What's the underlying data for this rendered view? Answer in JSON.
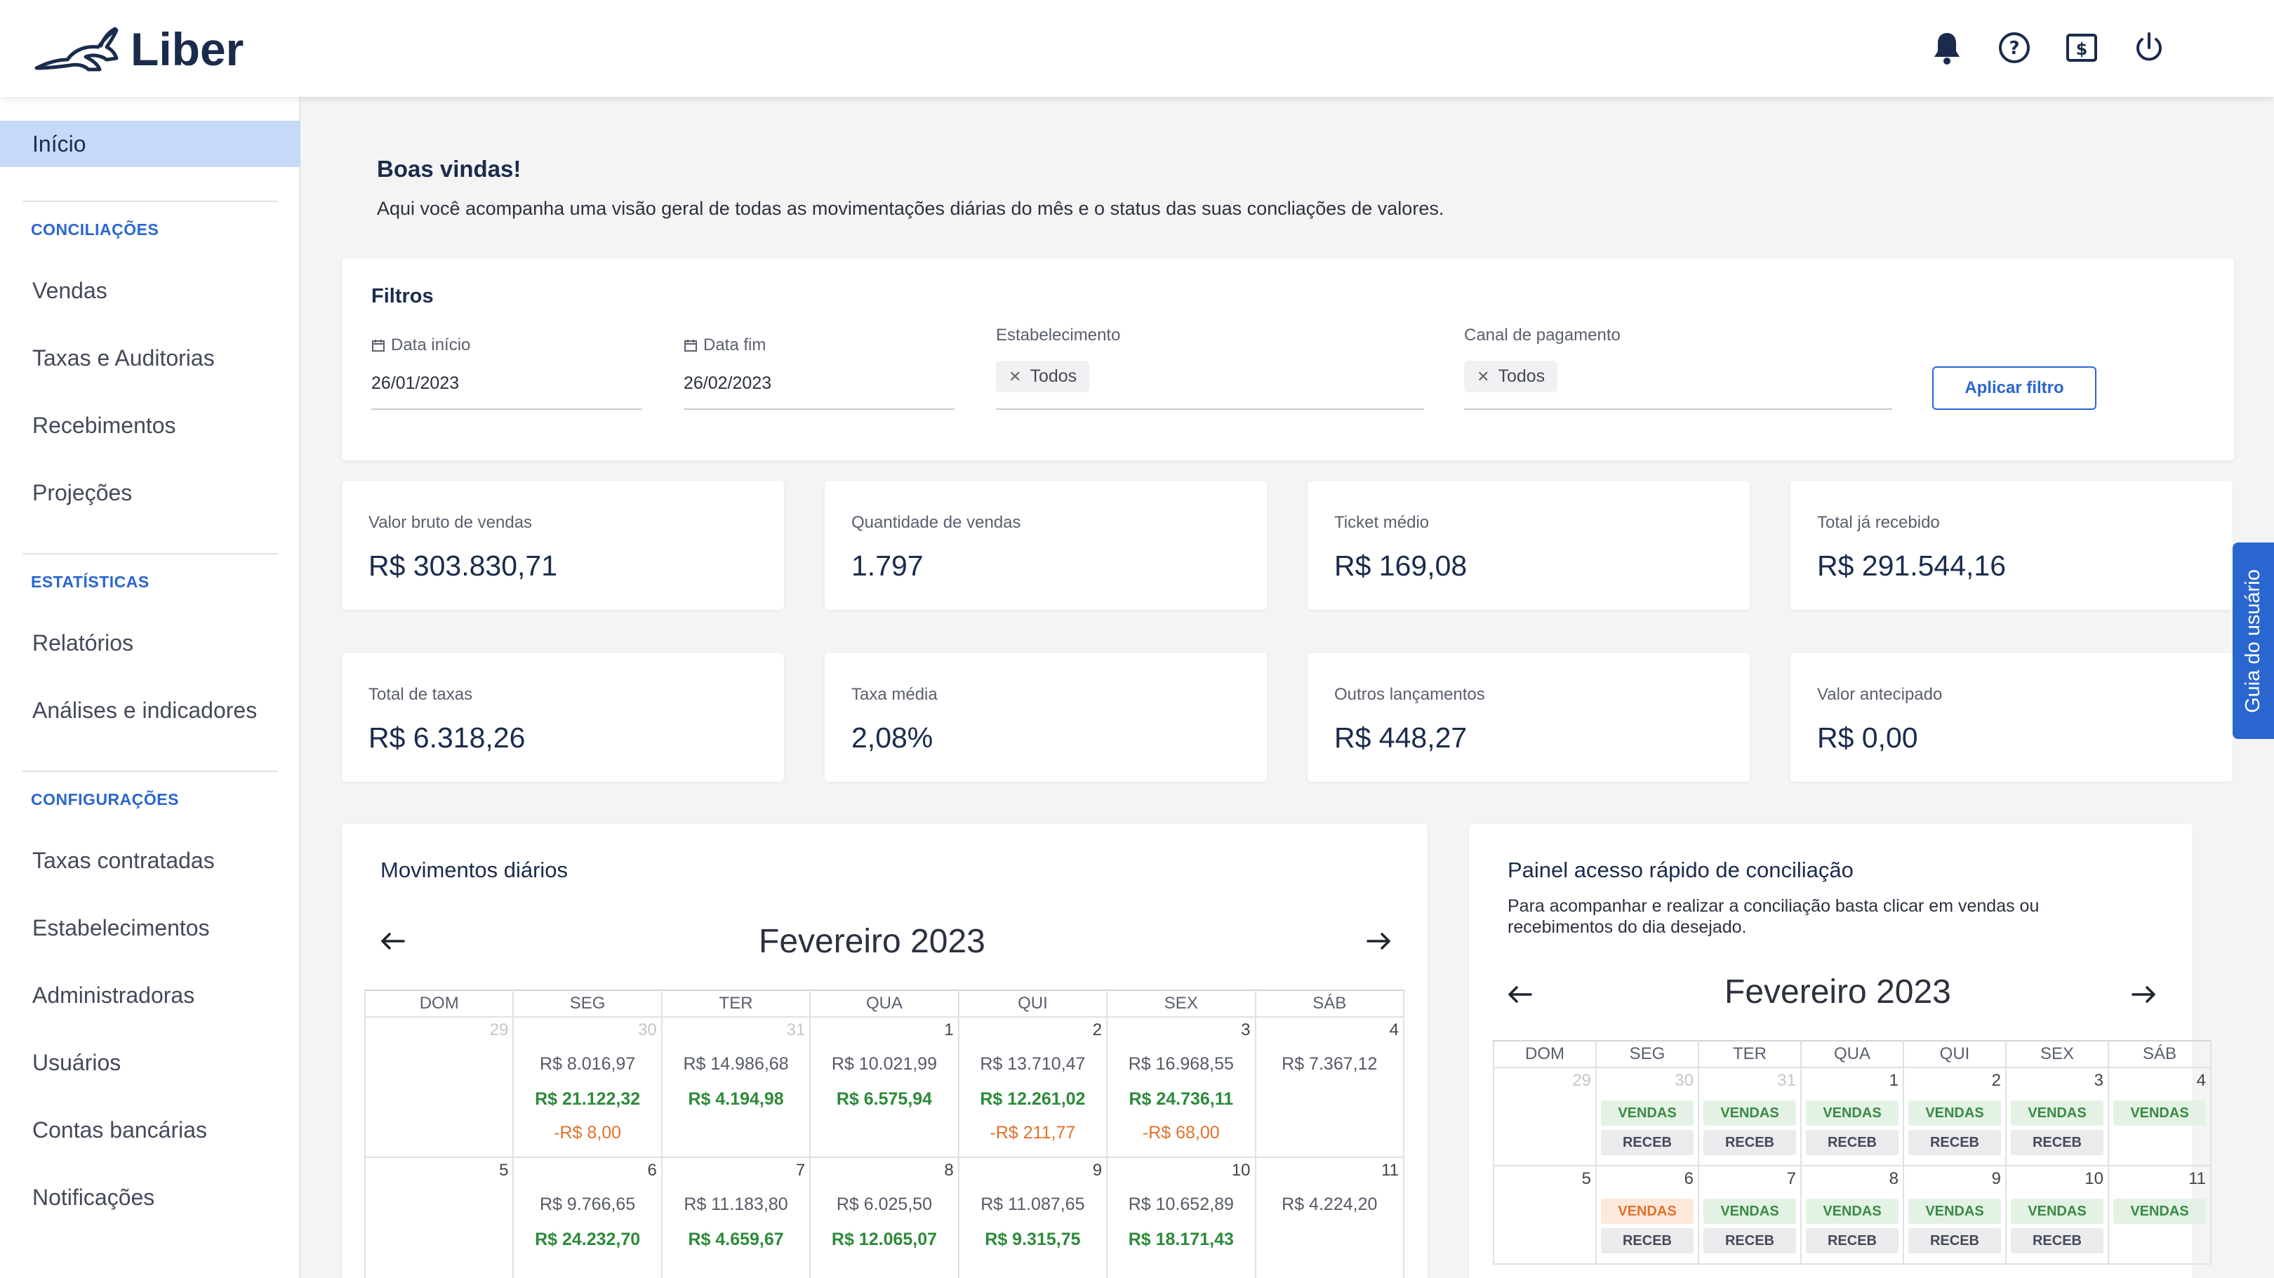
{
  "app": {
    "name": "Liber"
  },
  "header": {
    "icons": [
      "bell-icon",
      "help-icon",
      "dollar-icon",
      "power-icon"
    ]
  },
  "sidebar": {
    "active": "Início",
    "sections": [
      {
        "title": "CONCILIAÇÕES",
        "items": [
          "Vendas",
          "Taxas e Auditorias",
          "Recebimentos",
          "Projeções"
        ]
      },
      {
        "title": "ESTATÍSTICAS",
        "items": [
          "Relatórios",
          "Análises e indicadores"
        ]
      },
      {
        "title": "CONFIGURAÇÕES",
        "items": [
          "Taxas contratadas",
          "Estabelecimentos",
          "Administradoras",
          "Usuários",
          "Contas bancárias",
          "Notificações"
        ]
      }
    ]
  },
  "welcome": {
    "title": "Boas vindas!",
    "subtitle": "Aqui você acompanha uma visão geral de todas as movimentações diárias do mês e o status das suas concliações de valores."
  },
  "filters": {
    "title": "Filtros",
    "start_label": "Data início",
    "start_value": "26/01/2023",
    "end_label": "Data fim",
    "end_value": "26/02/2023",
    "establishment_label": "Estabelecimento",
    "establishment_chip": "Todos",
    "channel_label": "Canal de pagamento",
    "channel_chip": "Todos",
    "apply": "Aplicar filtro"
  },
  "stats": [
    {
      "label": "Valor bruto de vendas",
      "value": "R$ 303.830,71"
    },
    {
      "label": "Quantidade de vendas",
      "value": "1.797"
    },
    {
      "label": "Ticket médio",
      "value": "R$ 169,08"
    },
    {
      "label": "Total já recebido",
      "value": "R$ 291.544,16"
    },
    {
      "label": "Total de taxas",
      "value": "R$ 6.318,26"
    },
    {
      "label": "Taxa média",
      "value": "2,08%"
    },
    {
      "label": "Outros lançamentos",
      "value": "R$ 448,27"
    },
    {
      "label": "Valor antecipado",
      "value": "R$ 0,00"
    }
  ],
  "daily": {
    "title": "Movimentos diários",
    "month": "Fevereiro 2023",
    "weekdays": [
      "DOM",
      "SEG",
      "TER",
      "QUA",
      "QUI",
      "SEX",
      "SÁB"
    ],
    "weeks": [
      [
        {
          "day": "29",
          "out": true
        },
        {
          "day": "30",
          "out": true,
          "gray": "R$ 8.016,97",
          "green": "R$ 21.122,32",
          "orange": "-R$ 8,00"
        },
        {
          "day": "31",
          "out": true,
          "gray": "R$ 14.986,68",
          "green": "R$ 4.194,98"
        },
        {
          "day": "1",
          "gray": "R$ 10.021,99",
          "green": "R$ 6.575,94"
        },
        {
          "day": "2",
          "gray": "R$ 13.710,47",
          "green": "R$ 12.261,02",
          "orange": "-R$ 211,77"
        },
        {
          "day": "3",
          "gray": "R$ 16.968,55",
          "green": "R$ 24.736,11",
          "orange": "-R$ 68,00"
        },
        {
          "day": "4",
          "gray": "R$ 7.367,12"
        }
      ],
      [
        {
          "day": "5"
        },
        {
          "day": "6",
          "gray": "R$ 9.766,65",
          "green": "R$ 24.232,70"
        },
        {
          "day": "7",
          "gray": "R$ 11.183,80",
          "green": "R$ 4.659,67"
        },
        {
          "day": "8",
          "gray": "R$ 6.025,50",
          "green": "R$ 12.065,07"
        },
        {
          "day": "9",
          "gray": "R$ 11.087,65",
          "green": "R$ 9.315,75"
        },
        {
          "day": "10",
          "gray": "R$ 10.652,89",
          "green": "R$ 18.171,43"
        },
        {
          "day": "11",
          "gray": "R$ 4.224,20"
        }
      ]
    ]
  },
  "quick": {
    "title": "Painel acesso rápido de conciliação",
    "description": "Para acompanhar e realizar a conciliação basta clicar em vendas ou recebimentos do dia desejado.",
    "month": "Fevereiro 2023",
    "weekdays": [
      "DOM",
      "SEG",
      "TER",
      "QUA",
      "QUI",
      "SEX",
      "SÁB"
    ],
    "sales_label": "VENDAS",
    "receipts_label": "RECEB",
    "weeks": [
      [
        {
          "day": "29",
          "out": true
        },
        {
          "day": "30",
          "out": true,
          "v": "green",
          "r": true
        },
        {
          "day": "31",
          "out": true,
          "v": "green",
          "r": true
        },
        {
          "day": "1",
          "v": "green",
          "r": true
        },
        {
          "day": "2",
          "v": "green",
          "r": true
        },
        {
          "day": "3",
          "v": "green",
          "r": true
        },
        {
          "day": "4",
          "v": "green"
        }
      ],
      [
        {
          "day": "5"
        },
        {
          "day": "6",
          "v": "orange",
          "r": true
        },
        {
          "day": "7",
          "v": "green",
          "r": true
        },
        {
          "day": "8",
          "v": "green",
          "r": true
        },
        {
          "day": "9",
          "v": "green",
          "r": true
        },
        {
          "day": "10",
          "v": "green",
          "r": true
        },
        {
          "day": "11",
          "v": "green"
        }
      ]
    ]
  },
  "guide_tab": "Guia do usuário"
}
